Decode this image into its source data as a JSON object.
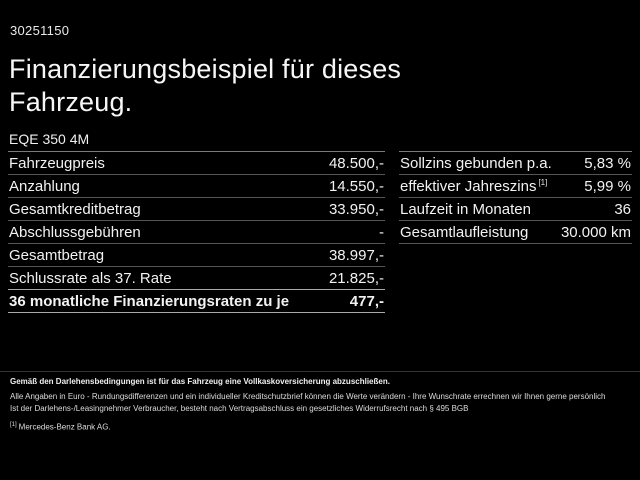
{
  "page": {
    "code": "30251150",
    "title": "Finanzierungsbeispiel für dieses Fahrzeug.",
    "model": "EQE 350 4M"
  },
  "left_table": {
    "rows": [
      {
        "label": "Fahrzeugpreis",
        "value": "48.500,-"
      },
      {
        "label": "Anzahlung",
        "value": "14.550,-"
      },
      {
        "label": "Gesamtkreditbetrag",
        "value": "33.950,-"
      },
      {
        "label": "Abschlussgebühren",
        "value": "-"
      },
      {
        "label": "Gesamtbetrag",
        "value": "38.997,-"
      },
      {
        "label": "Schlussrate als 37. Rate",
        "value": "21.825,-"
      },
      {
        "label": "36 monatliche Finanzierungsraten zu je",
        "value": "477,-"
      }
    ]
  },
  "right_table": {
    "rows": [
      {
        "label": "Sollzins gebunden p.a.",
        "sup": "",
        "value": "5,83 %"
      },
      {
        "label": "effektiver Jahreszins",
        "sup": "[1]",
        "value": "5,99 %"
      },
      {
        "label": "Laufzeit in Monaten",
        "sup": "",
        "value": "36"
      },
      {
        "label": "Gesamtlaufleistung",
        "sup": "",
        "value": "30.000 km"
      }
    ]
  },
  "footer": {
    "insurance_note": "Gemäß den Darlehensbedingungen ist für das Fahrzeug eine Vollkaskoversicherung abzuschließen.",
    "disclaimer_line1": "Alle Angaben in Euro - Rundungsdifferenzen und ein individueller Kreditschutzbrief können die Werte verändern - Ihre Wunschrate errechnen wir Ihnen gerne persönlich",
    "disclaimer_line2": "Ist der Darlehens-/Leasingnehmer Verbraucher, besteht nach Vertragsabschluss ein gesetzliches Widerrufsrecht nach § 495 BGB",
    "footnote_marker": "[1]",
    "footnote_text": "Mercedes-Benz Bank AG."
  },
  "colors": {
    "background": "#000000",
    "text": "#f2f2f2",
    "divider": "#555555",
    "divider_strong": "#aaaaaa"
  }
}
